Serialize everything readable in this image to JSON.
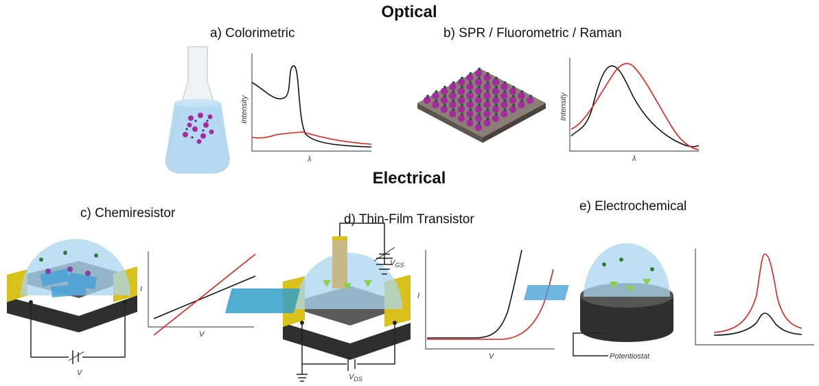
{
  "headings": {
    "optical": "Optical",
    "electrical": "Electrical"
  },
  "panels": {
    "a": {
      "title": "a) Colorimetric",
      "ylabel": "Intensity",
      "xlabel": "λ"
    },
    "b": {
      "title": "b) SPR / Fluorometric / Raman",
      "ylabel": "Intensity",
      "xlabel": "λ"
    },
    "c": {
      "title": "c) Chemiresistor",
      "ylabel": "I",
      "xlabel": "V",
      "source_label": "V"
    },
    "d": {
      "title": "d) Thin-Film Transistor",
      "ylabel": "I",
      "xlabel": "V",
      "gate_label": "V",
      "gate_sub": "GS",
      "drain_label": "V",
      "drain_sub": "DS"
    },
    "e": {
      "title": "e) Electrochemical",
      "device_label": "Potentiostat"
    }
  },
  "colors": {
    "curve_before": "#111111",
    "curve_after": "#e0201b",
    "gold": "#d9c11c",
    "substrate": "#3a3a3a",
    "dome": "#a9d4ef",
    "particle": "#a52a9e"
  }
}
